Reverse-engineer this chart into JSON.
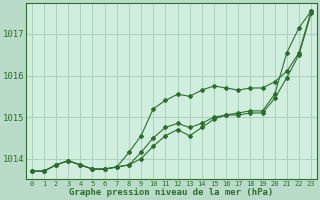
{
  "bg_color": "#b8dcc8",
  "plot_bg_color": "#d0eedd",
  "grid_color": "#a8ccb8",
  "line_color": "#2d6e2d",
  "title": "Graphe pression niveau de la mer (hPa)",
  "xlabel_hours": [
    0,
    1,
    2,
    3,
    4,
    5,
    6,
    7,
    8,
    9,
    10,
    11,
    12,
    13,
    14,
    15,
    16,
    17,
    18,
    19,
    20,
    21,
    22,
    23
  ],
  "yticks": [
    1014,
    1015,
    1016,
    1017
  ],
  "ylim": [
    1013.5,
    1017.75
  ],
  "xlim": [
    -0.5,
    23.5
  ],
  "line1": [
    1013.7,
    1013.7,
    1013.85,
    1013.95,
    1013.85,
    1013.75,
    1013.75,
    1013.8,
    1013.85,
    1014.15,
    1014.5,
    1014.75,
    1014.85,
    1014.75,
    1014.85,
    1015.0,
    1015.05,
    1015.05,
    1015.1,
    1015.1,
    1015.45,
    1015.95,
    1016.5,
    1017.5
  ],
  "line2": [
    1013.7,
    1013.7,
    1013.85,
    1013.95,
    1013.85,
    1013.75,
    1013.75,
    1013.8,
    1014.15,
    1014.55,
    1015.2,
    1015.4,
    1015.55,
    1015.5,
    1015.65,
    1015.75,
    1015.7,
    1015.65,
    1015.7,
    1015.7,
    1015.85,
    1016.1,
    1016.55,
    1017.55
  ],
  "line3": [
    1013.7,
    1013.7,
    1013.85,
    1013.95,
    1013.85,
    1013.75,
    1013.75,
    1013.8,
    1013.85,
    1014.0,
    1014.3,
    1014.55,
    1014.7,
    1014.55,
    1014.75,
    1014.95,
    1015.05,
    1015.1,
    1015.15,
    1015.15,
    1015.55,
    1016.55,
    1017.15,
    1017.55
  ]
}
